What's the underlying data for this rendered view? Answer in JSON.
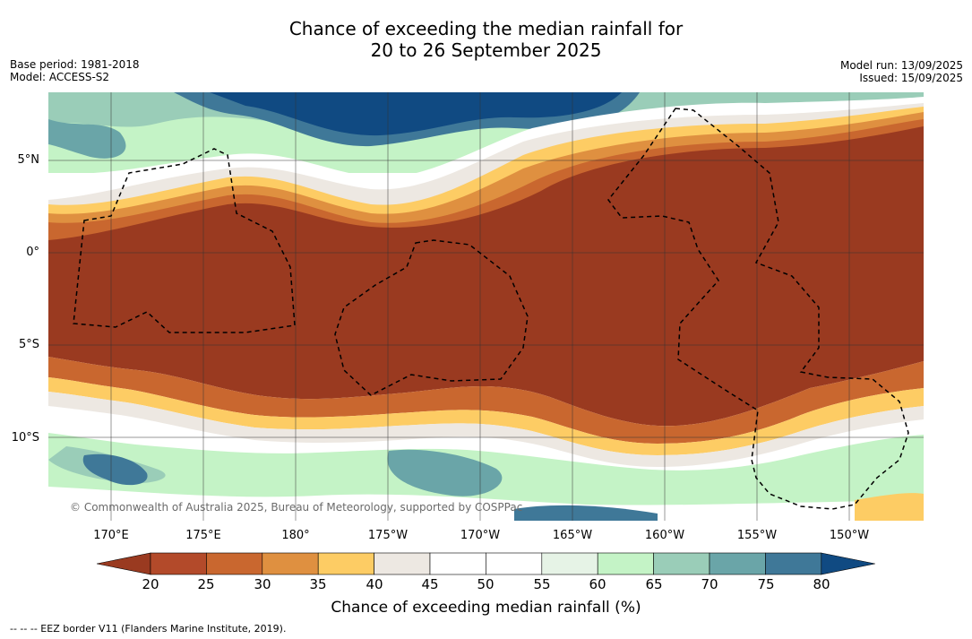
{
  "title": {
    "line1": "Chance of exceeding the median rainfall for",
    "line2": "20 to 26 September 2025"
  },
  "meta_left": {
    "base_period": "Base period: 1981-2018",
    "model": "Model: ACCESS-S2"
  },
  "meta_right": {
    "model_run": "Model run: 13/09/2025",
    "issued": "Issued: 15/09/2025"
  },
  "map": {
    "lat_labels": [
      "5°N",
      "0°",
      "5°S",
      "10°S"
    ],
    "lon_labels": [
      "170°E",
      "175°E",
      "180°",
      "175°W",
      "170°W",
      "165°W",
      "160°W",
      "155°W",
      "150°W"
    ],
    "copyright": "© Commonwealth of Australia 2025, Bureau of Meteorology, supported by COSPPac"
  },
  "colorbar": {
    "label": "Chance of exceeding median rainfall (%)",
    "ticks": [
      "20",
      "25",
      "30",
      "35",
      "40",
      "45",
      "50",
      "55",
      "60",
      "65",
      "70",
      "75",
      "80"
    ],
    "colors": [
      "#9a3a20",
      "#b34a2a",
      "#c9672f",
      "#df9040",
      "#fdcc64",
      "#ede8e2",
      "#ffffff",
      "#ffffff",
      "#e6f3e6",
      "#c4f3c6",
      "#9acdb8",
      "#6aa5a8",
      "#3f7898",
      "#104a82"
    ]
  },
  "footnote": "--  --  -- EEZ border V11 (Flanders Marine Institute, 2019)."
}
